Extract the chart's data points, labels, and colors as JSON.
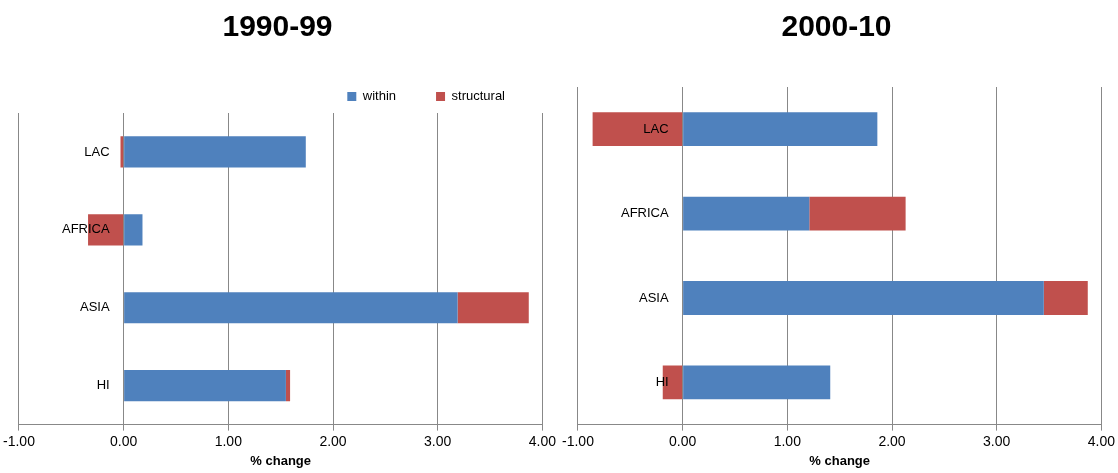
{
  "chart_data": [
    {
      "type": "bar",
      "title": "1990-99",
      "orientation": "horizontal",
      "stacked": true,
      "categories": [
        "LAC",
        "AFRICA",
        "ASIA",
        "HI"
      ],
      "series": [
        {
          "name": "within",
          "color": "#4f81bd",
          "values": [
            1.74,
            0.18,
            3.19,
            1.55
          ]
        },
        {
          "name": "structural",
          "color": "#c0504d",
          "values": [
            -0.03,
            -0.34,
            0.68,
            0.04
          ]
        }
      ],
      "xlabel": "% change",
      "xlim": [
        -1,
        4
      ],
      "xticks": [
        {
          "value": -1,
          "label": "-1.00"
        },
        {
          "value": 0,
          "label": "0.00"
        },
        {
          "value": 1,
          "label": "1.00"
        },
        {
          "value": 2,
          "label": "2.00"
        },
        {
          "value": 3,
          "label": "3.00"
        },
        {
          "value": 4,
          "label": "4.00"
        }
      ],
      "grid": "x",
      "legend": "top right"
    },
    {
      "type": "bar",
      "title": "2000-10",
      "orientation": "horizontal",
      "stacked": true,
      "categories": [
        "LAC",
        "AFRICA",
        "ASIA",
        "HI"
      ],
      "series": [
        {
          "color": "#4f81bd",
          "values": [
            1.86,
            1.21,
            3.45,
            1.41
          ]
        },
        {
          "color": "#c0504d",
          "values": [
            -0.86,
            0.92,
            0.42,
            -0.19
          ]
        }
      ],
      "xlabel": "% change",
      "xlim": [
        -1,
        4
      ],
      "xticks": [
        {
          "value": -1,
          "label": "-1.00"
        },
        {
          "value": 0,
          "label": "0.00"
        },
        {
          "value": 1,
          "label": "1.00"
        },
        {
          "value": 2,
          "label": "2.00"
        },
        {
          "value": 3,
          "label": "3.00"
        },
        {
          "value": 4,
          "label": "4.00"
        }
      ],
      "grid": "x"
    }
  ]
}
